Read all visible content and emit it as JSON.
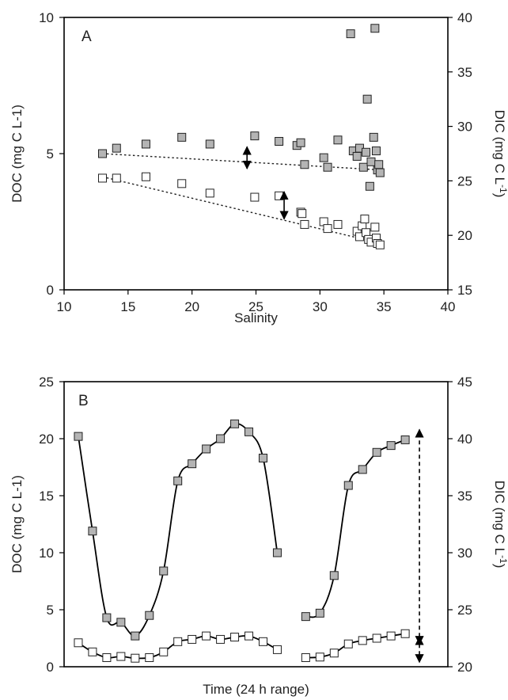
{
  "chart_data": [
    {
      "panel_label": "A",
      "type": "scatter",
      "xlabel": "Salinity",
      "ylabel": "DOC (mg C L-1)",
      "ylabel_right": "DIC (mg C L-1)",
      "xlim": [
        10,
        40
      ],
      "ylim": [
        0,
        10
      ],
      "ylim_right": [
        15,
        40
      ],
      "xticks": [
        "10",
        "15",
        "20",
        "25",
        "30",
        "35",
        "40"
      ],
      "yticks": [
        "0",
        "5",
        "10"
      ],
      "yticks_right": [
        "15",
        "20",
        "25",
        "30",
        "35",
        "40"
      ],
      "grid": false,
      "series": [
        {
          "fill": "#b4b4b4",
          "points": [
            [
              13.0,
              5.0
            ],
            [
              14.1,
              5.2
            ],
            [
              16.4,
              5.35
            ],
            [
              19.2,
              5.6
            ],
            [
              21.4,
              5.35
            ],
            [
              24.9,
              5.65
            ],
            [
              26.8,
              5.45
            ],
            [
              28.2,
              5.3
            ],
            [
              28.5,
              5.4
            ],
            [
              28.8,
              4.6
            ],
            [
              30.3,
              4.85
            ],
            [
              30.6,
              4.5
            ],
            [
              31.4,
              5.5
            ],
            [
              32.4,
              9.4
            ],
            [
              32.6,
              5.1
            ],
            [
              32.9,
              4.9
            ],
            [
              33.1,
              5.2
            ],
            [
              33.4,
              4.5
            ],
            [
              33.6,
              5.05
            ],
            [
              33.7,
              7.0
            ],
            [
              33.9,
              3.8
            ],
            [
              34.0,
              4.7
            ],
            [
              34.2,
              5.6
            ],
            [
              34.3,
              9.6
            ],
            [
              34.4,
              5.1
            ],
            [
              34.5,
              4.4
            ],
            [
              34.6,
              4.6
            ],
            [
              34.7,
              4.3
            ]
          ]
        },
        {
          "fill": "#ffffff",
          "points": [
            [
              13.0,
              4.1
            ],
            [
              14.1,
              4.1
            ],
            [
              16.4,
              4.15
            ],
            [
              19.2,
              3.9
            ],
            [
              21.4,
              3.55
            ],
            [
              24.9,
              3.4
            ],
            [
              26.8,
              3.45
            ],
            [
              28.5,
              2.85
            ],
            [
              28.6,
              2.8
            ],
            [
              28.8,
              2.4
            ],
            [
              30.3,
              2.5
            ],
            [
              30.6,
              2.25
            ],
            [
              31.4,
              2.4
            ],
            [
              32.9,
              2.15
            ],
            [
              33.1,
              1.95
            ],
            [
              33.3,
              2.35
            ],
            [
              33.5,
              2.6
            ],
            [
              33.6,
              2.1
            ],
            [
              33.8,
              1.85
            ],
            [
              34.0,
              1.75
            ],
            [
              34.3,
              2.3
            ],
            [
              34.4,
              1.9
            ],
            [
              34.5,
              1.7
            ],
            [
              34.7,
              1.65
            ]
          ]
        }
      ],
      "trendlines": [
        {
          "from": [
            13.0,
            5.0
          ],
          "to": [
            34.8,
            4.4
          ]
        },
        {
          "from": [
            13.0,
            4.15
          ],
          "to": [
            34.8,
            1.7
          ]
        }
      ],
      "arrows": [
        {
          "x": 24.3,
          "y1": 4.45,
          "y2": 5.25
        },
        {
          "x": 27.2,
          "y1": 2.6,
          "y2": 3.6
        }
      ]
    },
    {
      "panel_label": "B",
      "type": "line",
      "xlabel": "Time (24 h range)",
      "ylabel": "DOC (mg C L-1)",
      "ylabel_right": "DIC (mg C L-1)",
      "ylim": [
        0,
        25
      ],
      "ylim_right": [
        20,
        45
      ],
      "yticks": [
        "0",
        "5",
        "10",
        "15",
        "20",
        "25"
      ],
      "yticks_right": [
        "20",
        "25",
        "30",
        "35",
        "40",
        "45"
      ],
      "grid": false,
      "series": [
        {
          "fill": "#b4b4b4",
          "segments": [
            [
              [
                1,
                20.2
              ],
              [
                2,
                11.9
              ],
              [
                3,
                4.3
              ],
              [
                4,
                3.9
              ],
              [
                5,
                2.7
              ],
              [
                6,
                4.5
              ],
              [
                7,
                8.4
              ],
              [
                8,
                16.3
              ],
              [
                9,
                17.8
              ],
              [
                10,
                19.1
              ],
              [
                11,
                20.0
              ],
              [
                12,
                21.3
              ],
              [
                13,
                20.6
              ],
              [
                14,
                18.3
              ],
              [
                15,
                10.0
              ]
            ],
            [
              [
                17,
                4.4
              ],
              [
                18,
                4.7
              ],
              [
                19,
                8.0
              ],
              [
                20,
                15.9
              ],
              [
                21,
                17.3
              ],
              [
                22,
                18.8
              ],
              [
                23,
                19.4
              ],
              [
                24,
                19.9
              ]
            ]
          ]
        },
        {
          "fill": "#ffffff",
          "segments": [
            [
              [
                1,
                2.1
              ],
              [
                2,
                1.3
              ],
              [
                3,
                0.8
              ],
              [
                4,
                0.9
              ],
              [
                5,
                0.75
              ],
              [
                6,
                0.8
              ],
              [
                7,
                1.3
              ],
              [
                8,
                2.2
              ],
              [
                9,
                2.4
              ],
              [
                10,
                2.7
              ],
              [
                11,
                2.4
              ],
              [
                12,
                2.6
              ],
              [
                13,
                2.7
              ],
              [
                14,
                2.2
              ],
              [
                15,
                1.5
              ]
            ],
            [
              [
                17,
                0.8
              ],
              [
                18,
                0.85
              ],
              [
                19,
                1.2
              ],
              [
                20,
                2.0
              ],
              [
                21,
                2.3
              ],
              [
                22,
                2.5
              ],
              [
                23,
                2.7
              ],
              [
                24,
                2.9
              ]
            ]
          ]
        }
      ],
      "arrows": [
        {
          "x": 25,
          "y1": 2.0,
          "y2": 20.8,
          "dashed": true
        },
        {
          "x": 25,
          "y1": 0.4,
          "y2": 2.6,
          "dashed": true
        }
      ]
    }
  ]
}
